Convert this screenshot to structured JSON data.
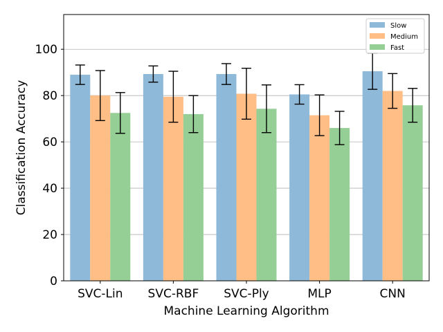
{
  "chart_data": {
    "type": "bar",
    "title": "",
    "xlabel": "Machine Learning Algorithm",
    "ylabel": "Classification Accuracy",
    "ylim": [
      0,
      115
    ],
    "yticks": [
      0,
      20,
      40,
      60,
      80,
      100
    ],
    "grid": "horizontal",
    "legend_position": "top-right",
    "categories": [
      "SVC-Lin",
      "SVC-RBF",
      "SVC-Ply",
      "MLP",
      "CNN"
    ],
    "series": [
      {
        "name": "Slow",
        "color": "#8fb9d9",
        "values": [
          89.0,
          89.3,
          89.3,
          80.5,
          90.5
        ],
        "errors": [
          4.2,
          3.5,
          4.5,
          4.2,
          7.8
        ]
      },
      {
        "name": "Medium",
        "color": "#ffbe86",
        "values": [
          80.0,
          79.5,
          80.8,
          71.5,
          82.0
        ],
        "errors": [
          10.8,
          11.0,
          11.0,
          8.8,
          7.5
        ]
      },
      {
        "name": "Fast",
        "color": "#95cf95",
        "values": [
          72.5,
          72.0,
          74.3,
          66.0,
          75.8
        ],
        "errors": [
          8.8,
          8.0,
          10.3,
          7.2,
          7.3
        ]
      }
    ]
  }
}
